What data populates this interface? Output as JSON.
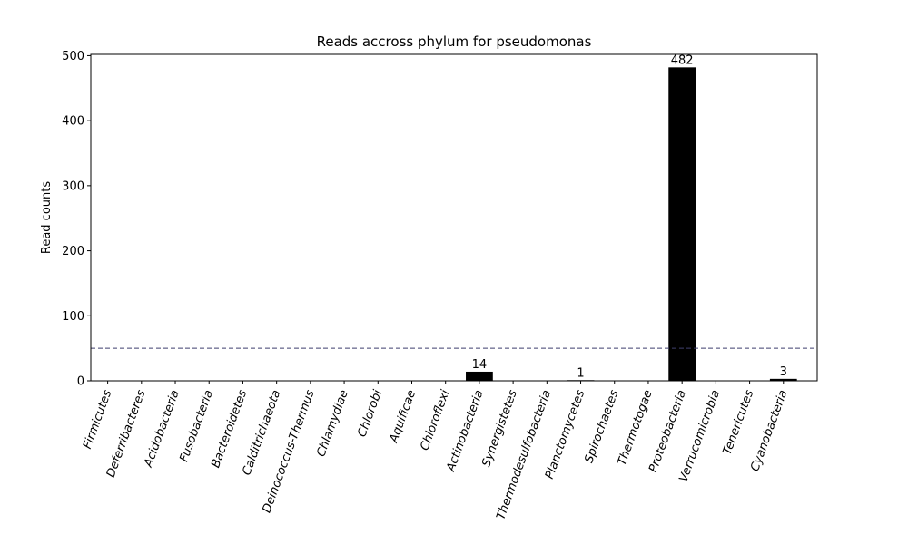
{
  "chart_data": {
    "type": "bar",
    "title": "Reads accross phylum for pseudomonas",
    "xlabel": "",
    "ylabel": "Read counts",
    "ylim": [
      0,
      502
    ],
    "yticks": [
      0,
      100,
      200,
      300,
      400,
      500
    ],
    "categories": [
      "Firmicutes",
      "Deferribacteres",
      "Acidobacteria",
      "Fusobacteria",
      "Bacteroidetes",
      "Calditrichaeota",
      "Deinococcus-Thermus",
      "Chlamydiae",
      "Chlorobi",
      "Aquificae",
      "Chloroflexi",
      "Actinobacteria",
      "Synergistetes",
      "Thermodesulfobacteria",
      "Planctomycetes",
      "Spirochaetes",
      "Thermotogae",
      "Proteobacteria",
      "Verrucomicrobia",
      "Tenericutes",
      "Cyanobacteria"
    ],
    "values": [
      0,
      0,
      0,
      0,
      0,
      0,
      0,
      0,
      0,
      0,
      0,
      14,
      0,
      0,
      1,
      0,
      0,
      482,
      0,
      0,
      3
    ],
    "data_labels": [
      "",
      "",
      "",
      "",
      "",
      "",
      "",
      "",
      "",
      "",
      "",
      "14",
      "",
      "",
      "1",
      "",
      "",
      "482",
      "",
      "",
      "3"
    ],
    "reference_line": {
      "y": 50,
      "style": "dashed",
      "color": "#3f3f6e"
    },
    "bar_color": "#000000",
    "grid": false,
    "legend": "none"
  }
}
